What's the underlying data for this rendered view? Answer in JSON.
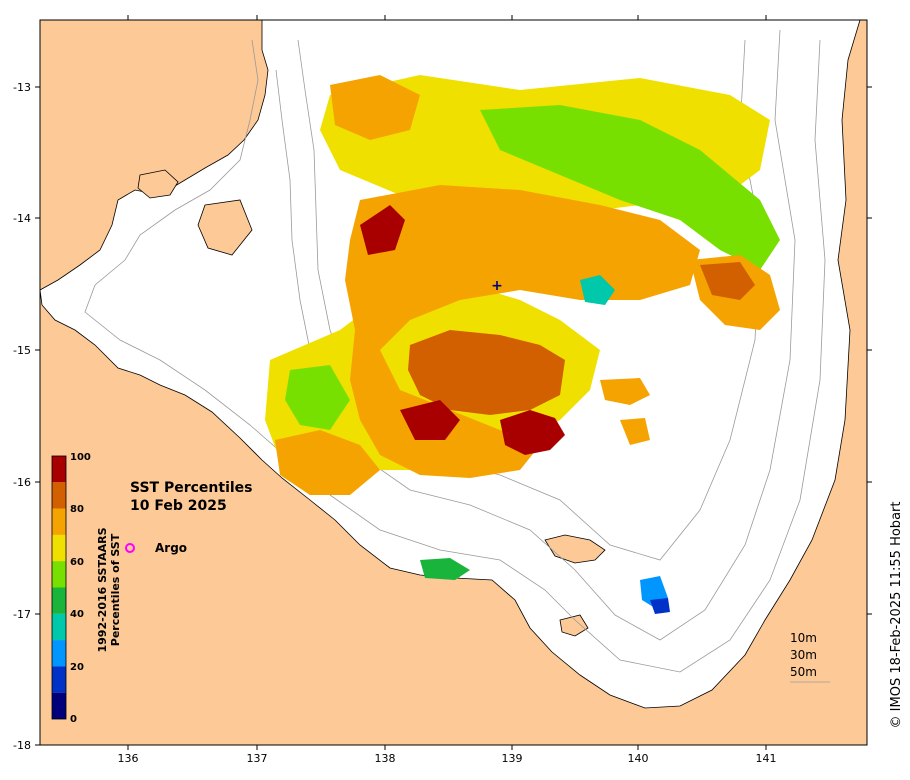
{
  "map": {
    "title_line1": "SST Percentiles",
    "title_line2": "10 Feb 2025",
    "legend_argo_label": "Argo",
    "credit": "© IMOS 18-Feb-2025 11:55 Hobart",
    "x_ticks": [
      "136",
      "137",
      "138",
      "139",
      "140",
      "141"
    ],
    "y_ticks": [
      "-13",
      "-14",
      "-15",
      "-16",
      "-17",
      "-18"
    ],
    "depth_contours": [
      "10m",
      "30m",
      "50m"
    ],
    "colors": {
      "land": "#fdc996",
      "ocean": "#ffffff",
      "contour": "#9a9a9a",
      "argo_marker": "#ff00ff"
    }
  },
  "colorbar": {
    "title_line1": "1992-2016 SSTAARS",
    "title_line2": "Percentiles of SST",
    "tick_labels": [
      "100",
      "80",
      "60",
      "40",
      "20",
      "0"
    ],
    "bands": [
      {
        "range": "90-100",
        "color": "#a80000"
      },
      {
        "range": "80-90",
        "color": "#d25f00"
      },
      {
        "range": "70-80",
        "color": "#f5a300"
      },
      {
        "range": "60-70",
        "color": "#f0e000"
      },
      {
        "range": "50-60",
        "color": "#78e000"
      },
      {
        "range": "40-50",
        "color": "#19b43c"
      },
      {
        "range": "30-40",
        "color": "#00c8aa"
      },
      {
        "range": "20-30",
        "color": "#0096ff"
      },
      {
        "range": "10-20",
        "color": "#0032c8"
      },
      {
        "range": "0-10",
        "color": "#00007a"
      }
    ]
  }
}
